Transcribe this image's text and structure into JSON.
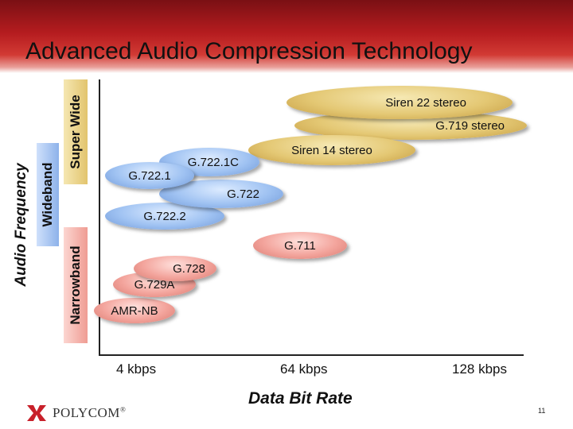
{
  "slide": {
    "title": "Advanced Audio Compression Technology",
    "page_number": "11"
  },
  "y_axis": {
    "label": "Audio Frequency",
    "bands": [
      "Super Wide",
      "Wideband",
      "Narrowband"
    ]
  },
  "x_axis": {
    "label": "Data Bit Rate",
    "ticks": [
      "4 kbps",
      "64 kbps",
      "128 kbps"
    ]
  },
  "codecs": {
    "siren22": "Siren 22 stereo",
    "g719": "G.719 stereo",
    "siren14": "Siren 14 stereo",
    "g7221c": "G.722.1C",
    "g7221": "G.722.1",
    "g722": "G.722",
    "g7222": "G.722.2",
    "g711": "G.711",
    "g728": "G.728",
    "g729a": "G.729A",
    "amrnb": "AMR-NB"
  },
  "logo": {
    "text": "POLYCOM",
    "trademark": "®"
  },
  "colors": {
    "header_dark": "#7a1014",
    "header_red": "#b51c1f",
    "super_wide": "#e4c874",
    "wideband": "#9fc2f2",
    "narrowband": "#f3a49c",
    "logo_red": "#c8202a"
  }
}
